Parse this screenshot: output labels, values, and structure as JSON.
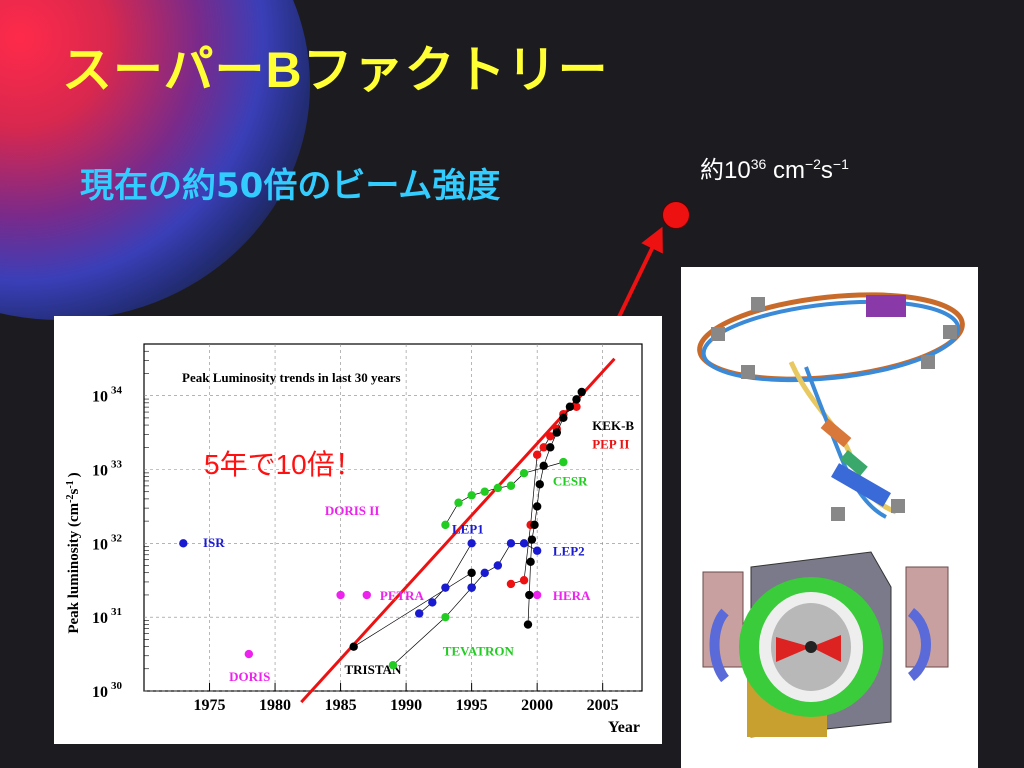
{
  "slide": {
    "title": "スーパーBファクトリー",
    "subtitle": "現在の約50倍のビーム強度",
    "target": {
      "prefix": "約10",
      "exp": "36",
      "unit_a": " cm",
      "exp2": "−2",
      "unit_b": "s",
      "exp3": "−1"
    },
    "annotation": "5年で10倍！"
  },
  "colors": {
    "title": "#ffff33",
    "subtitle": "#33ccff",
    "annotation": "#ff1111",
    "arrow": "#ee1111"
  },
  "chart_data": {
    "type": "scatter",
    "title": "Peak Luminosity trends in last 30 years",
    "xlabel": "Year",
    "ylabel_parts": {
      "base": "Peak luminosity (cm",
      "e1": "-2",
      "mid": "s",
      "e2": "-1",
      "end": ")"
    },
    "xlim": [
      1970,
      2008
    ],
    "ylim_log10": [
      30,
      34.7
    ],
    "y_scale": "log",
    "x_ticks": [
      "1975",
      "1980",
      "1985",
      "1990",
      "1995",
      "2000",
      "2005"
    ],
    "y_ticks": [
      {
        "base": "10",
        "exp": "30",
        "v": 30
      },
      {
        "base": "10",
        "exp": "31",
        "v": 31
      },
      {
        "base": "10",
        "exp": "32",
        "v": 32
      },
      {
        "base": "10",
        "exp": "33",
        "v": 33
      },
      {
        "base": "10",
        "exp": "34",
        "v": 34
      }
    ],
    "trend": {
      "from": [
        1982,
        29.85
      ],
      "to": [
        2005.9,
        34.5
      ]
    },
    "series": [
      {
        "name": "ISR",
        "color": "#1a1ad0",
        "label_at": [
          1974.5,
          32.02
        ],
        "points": [
          [
            1973,
            32.0
          ]
        ]
      },
      {
        "name": "DORIS",
        "color": "#ee22ee",
        "label_at": [
          1976.5,
          30.2
        ],
        "points": [
          [
            1978,
            30.5
          ]
        ]
      },
      {
        "name": "DORIS II",
        "color": "#ee22ee",
        "label_at": [
          1983.8,
          32.45
        ],
        "points": [
          [
            1985,
            31.3
          ]
        ]
      },
      {
        "name": "PETRA",
        "color": "#ee22ee",
        "label_at": [
          1988.0,
          31.3
        ],
        "points": [
          [
            1987,
            31.3
          ]
        ]
      },
      {
        "name": "TRISTAN",
        "color": "#000000",
        "label_at": [
          1985.3,
          30.3
        ],
        "points": [
          [
            1986,
            30.6
          ],
          [
            1995,
            31.6
          ],
          [
            1995,
            31.4
          ]
        ]
      },
      {
        "name": "TEVATRON",
        "color": "#22cc22",
        "label_at": [
          1992.8,
          30.55
        ],
        "points": [
          [
            1989,
            30.35
          ],
          [
            1993,
            31.0
          ],
          [
            1995,
            31.4
          ]
        ]
      },
      {
        "name": "LEP1",
        "color": "#1a1ad0",
        "label_at": [
          1993.5,
          32.2
        ],
        "points": [
          [
            1991,
            31.05
          ],
          [
            1992,
            31.2
          ],
          [
            1993,
            31.4
          ],
          [
            1995,
            32.0
          ]
        ]
      },
      {
        "name": "LEP2",
        "color": "#1a1ad0",
        "label_at": [
          2001.2,
          31.9
        ],
        "points": [
          [
            1995,
            31.4
          ],
          [
            1996,
            31.6
          ],
          [
            1997,
            31.7
          ],
          [
            1998,
            32.0
          ],
          [
            1999,
            32.0
          ],
          [
            2000,
            31.9
          ]
        ]
      },
      {
        "name": "CESR",
        "color": "#22cc22",
        "label_at": [
          2001.2,
          32.85
        ],
        "points": [
          [
            1993,
            32.25
          ],
          [
            1994,
            32.55
          ],
          [
            1995,
            32.65
          ],
          [
            1996,
            32.7
          ],
          [
            1997,
            32.75
          ],
          [
            1998,
            32.78
          ],
          [
            1999,
            32.95
          ],
          [
            2002,
            33.1
          ]
        ]
      },
      {
        "name": "HERA",
        "color": "#ee22ee",
        "label_at": [
          2001.2,
          31.3
        ],
        "points": [
          [
            2000,
            31.3
          ]
        ]
      },
      {
        "name": "PEP II",
        "color": "#ee1111",
        "label_at": [
          2004.2,
          33.35
        ],
        "points": [
          [
            1998,
            31.45
          ],
          [
            1999,
            31.5
          ],
          [
            1999.5,
            32.25
          ],
          [
            2000,
            33.2
          ],
          [
            2000.5,
            33.3
          ],
          [
            2001,
            33.45
          ],
          [
            2001.5,
            33.55
          ],
          [
            2002,
            33.75
          ],
          [
            2003,
            33.85
          ]
        ]
      },
      {
        "name": "KEK-B",
        "color": "#000000",
        "label_at": [
          2004.2,
          33.6
        ],
        "points": [
          [
            1999.3,
            30.9
          ],
          [
            1999.4,
            31.3
          ],
          [
            1999.5,
            31.75
          ],
          [
            1999.6,
            32.05
          ],
          [
            1999.8,
            32.25
          ],
          [
            2000,
            32.5
          ],
          [
            2000.2,
            32.8
          ],
          [
            2000.5,
            33.05
          ],
          [
            2001,
            33.3
          ],
          [
            2001.5,
            33.5
          ],
          [
            2002,
            33.7
          ],
          [
            2002.5,
            33.85
          ],
          [
            2003,
            33.95
          ],
          [
            2003.4,
            34.05
          ]
        ]
      }
    ]
  }
}
